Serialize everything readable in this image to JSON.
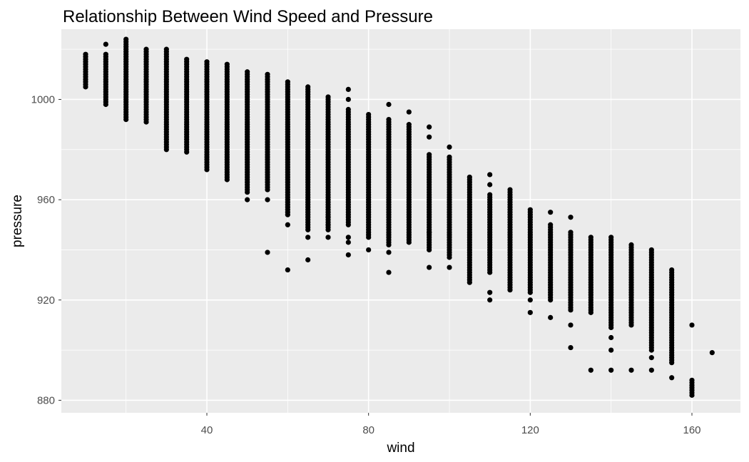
{
  "chart_data": {
    "type": "scatter",
    "title": "Relationship Between Wind Speed and Pressure",
    "xlabel": "wind",
    "ylabel": "pressure",
    "xlim": [
      4,
      172
    ],
    "ylim": [
      875,
      1028
    ],
    "x_ticks": [
      40,
      80,
      120,
      160
    ],
    "x_minor": [
      20,
      60,
      100,
      140
    ],
    "y_ticks": [
      880,
      920,
      960,
      1000
    ],
    "y_minor": [
      900,
      940,
      980,
      1020
    ],
    "grid": true,
    "legend": "none",
    "panel_color": "#ebebeb",
    "point_color": "#000000",
    "columns": [
      {
        "x": 10,
        "min": 1005,
        "max": 1018,
        "extra": []
      },
      {
        "x": 15,
        "min": 998,
        "max": 1018,
        "extra": [
          1022
        ]
      },
      {
        "x": 20,
        "min": 992,
        "max": 1024,
        "extra": []
      },
      {
        "x": 25,
        "min": 991,
        "max": 1020,
        "extra": []
      },
      {
        "x": 30,
        "min": 980,
        "max": 1020,
        "extra": []
      },
      {
        "x": 35,
        "min": 979,
        "max": 1016,
        "extra": []
      },
      {
        "x": 40,
        "min": 972,
        "max": 1015,
        "extra": []
      },
      {
        "x": 45,
        "min": 968,
        "max": 1014,
        "extra": []
      },
      {
        "x": 50,
        "min": 963,
        "max": 1011,
        "extra": [
          960
        ]
      },
      {
        "x": 55,
        "min": 964,
        "max": 1010,
        "extra": [
          960,
          939
        ]
      },
      {
        "x": 60,
        "min": 954,
        "max": 1007,
        "extra": [
          950,
          932
        ]
      },
      {
        "x": 65,
        "min": 948,
        "max": 1005,
        "extra": [
          945,
          936
        ]
      },
      {
        "x": 70,
        "min": 948,
        "max": 1001,
        "extra": [
          945,
          950,
          953
        ]
      },
      {
        "x": 75,
        "min": 950,
        "max": 996,
        "extra": [
          1004,
          1000,
          943,
          938,
          945
        ]
      },
      {
        "x": 80,
        "min": 945,
        "max": 994,
        "extra": [
          940
        ]
      },
      {
        "x": 85,
        "min": 942,
        "max": 992,
        "extra": [
          998,
          939,
          931
        ]
      },
      {
        "x": 90,
        "min": 943,
        "max": 990,
        "extra": [
          995
        ]
      },
      {
        "x": 95,
        "min": 940,
        "max": 978,
        "extra": [
          989,
          985,
          947,
          933
        ]
      },
      {
        "x": 100,
        "min": 937,
        "max": 977,
        "extra": [
          981,
          933
        ]
      },
      {
        "x": 105,
        "min": 927,
        "max": 969,
        "extra": []
      },
      {
        "x": 110,
        "min": 931,
        "max": 962,
        "extra": [
          970,
          966,
          920,
          923
        ]
      },
      {
        "x": 115,
        "min": 924,
        "max": 964,
        "extra": []
      },
      {
        "x": 120,
        "min": 923,
        "max": 956,
        "extra": [
          920,
          915
        ]
      },
      {
        "x": 125,
        "min": 920,
        "max": 950,
        "extra": [
          955,
          913
        ]
      },
      {
        "x": 130,
        "min": 916,
        "max": 947,
        "extra": [
          953,
          910,
          901
        ]
      },
      {
        "x": 135,
        "min": 915,
        "max": 945,
        "extra": [
          892
        ]
      },
      {
        "x": 140,
        "min": 909,
        "max": 945,
        "extra": [
          905,
          900,
          892
        ]
      },
      {
        "x": 145,
        "min": 910,
        "max": 942,
        "extra": [
          892
        ]
      },
      {
        "x": 150,
        "min": 900,
        "max": 940,
        "extra": [
          897,
          892
        ]
      },
      {
        "x": 155,
        "min": 895,
        "max": 932,
        "extra": [
          889
        ]
      },
      {
        "x": 160,
        "min": 882,
        "max": 888,
        "extra": [
          910
        ]
      },
      {
        "x": 165,
        "min": 899,
        "max": 899,
        "extra": []
      }
    ]
  }
}
